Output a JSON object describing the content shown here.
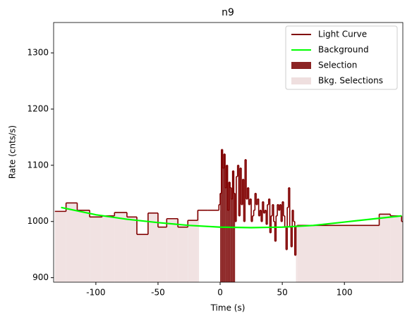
{
  "chart_data": {
    "type": "step",
    "title": "n9",
    "xlabel": "Time (s)",
    "ylabel": "Rate (cnts/s)",
    "xlim": [
      -134,
      147
    ],
    "ylim": [
      892,
      1354
    ],
    "xticks": [
      -100,
      -50,
      0,
      50,
      100
    ],
    "yticks": [
      900,
      1000,
      1100,
      1200,
      1300
    ],
    "legend": "upper right",
    "series": [
      {
        "name": "Light Curve",
        "color": "#800000",
        "bins": [
          -133,
          -124,
          -115,
          -105,
          -95,
          -85,
          -75,
          -67,
          -58,
          -50,
          -43,
          -34,
          -26,
          -18,
          -10,
          -2,
          -1,
          0,
          1,
          2,
          3,
          4,
          5,
          6,
          7,
          8,
          9,
          10,
          11,
          12,
          13,
          14,
          15,
          16,
          17,
          18,
          19,
          20,
          21,
          22,
          23,
          24,
          25,
          26,
          27,
          28,
          29,
          30,
          31,
          32,
          33,
          34,
          35,
          36,
          37,
          38,
          39,
          40,
          41,
          42,
          43,
          44,
          45,
          46,
          47,
          48,
          49,
          50,
          51,
          52,
          53,
          54,
          55,
          56,
          57,
          58,
          59,
          60,
          61,
          62,
          128,
          137,
          146,
          147
        ],
        "values": [
          1018,
          1033,
          1020,
          1008,
          1010,
          1016,
          1008,
          977,
          1015,
          990,
          1005,
          990,
          1002,
          1020,
          1020,
          1020,
          1030,
          1050,
          1128,
          1095,
          1120,
          1060,
          1100,
          1020,
          1070,
          1060,
          1040,
          1090,
          1050,
          1000,
          1080,
          1100,
          1010,
          1095,
          1030,
          1075,
          1000,
          1110,
          1040,
          1060,
          1030,
          1040,
          1000,
          1010,
          1020,
          1050,
          1030,
          1040,
          1010,
          1020,
          1000,
          1035,
          1015,
          1020,
          995,
          1030,
          1040,
          980,
          1010,
          1030,
          1000,
          965,
          1010,
          1030,
          1020,
          1030,
          1000,
          1035,
          1010,
          990,
          950,
          1025,
          1060,
          990,
          955,
          1020,
          1000,
          940,
          992,
          993,
          1013,
          1010,
          1000
        ]
      },
      {
        "name": "Background",
        "color": "#00ff00",
        "x": [
          -128,
          -100,
          -75,
          -50,
          -25,
          0,
          25,
          50,
          75,
          100,
          125,
          146
        ],
        "values": [
          1025,
          1012,
          1004,
          998,
          993,
          990,
          989,
          990,
          993,
          999,
          1005,
          1010
        ]
      },
      {
        "name": "Selection",
        "color": "#8b2323",
        "range": [
          0,
          12
        ]
      },
      {
        "name": "Bkg. Selections",
        "color": "#efdfdf",
        "ranges": [
          [
            -133,
            -17
          ],
          [
            61,
            147
          ]
        ]
      }
    ]
  }
}
